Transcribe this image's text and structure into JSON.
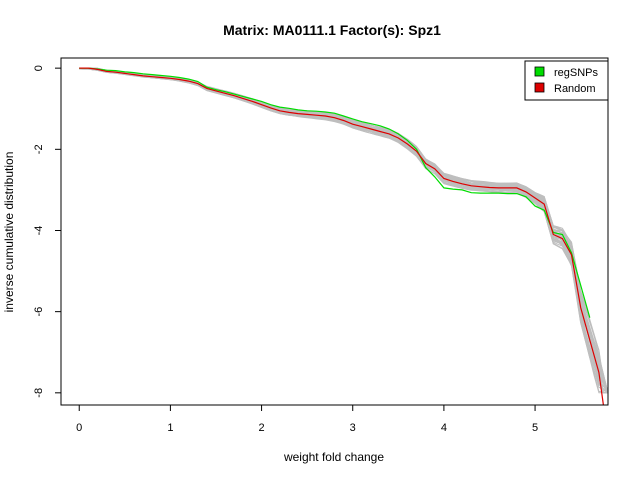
{
  "chart_data": {
    "type": "line",
    "title": "Matrix: MA0111.1 Factor(s): Spz1",
    "xlabel": "weight fold change",
    "ylabel": "inverse cumulative distribution",
    "xlim": [
      -0.2,
      5.8
    ],
    "ylim": [
      -8.3,
      0.25
    ],
    "x_ticks": [
      0,
      1,
      2,
      3,
      4,
      5
    ],
    "y_ticks": [
      0,
      -2,
      -4,
      -6,
      -8
    ],
    "legend": {
      "position": "top-right",
      "entries": [
        "regSNPs",
        "Random"
      ]
    },
    "colors": {
      "regSNPs": "#00dd00",
      "Random": "#dd0000",
      "background_runs": "#bebebe"
    },
    "series": [
      {
        "name": "regSNPs",
        "x": [
          0,
          0.1,
          0.2,
          0.3,
          0.4,
          0.5,
          0.6,
          0.7,
          0.8,
          0.9,
          1.0,
          1.1,
          1.2,
          1.3,
          1.4,
          1.5,
          1.6,
          1.7,
          1.8,
          1.9,
          2.0,
          2.1,
          2.2,
          2.3,
          2.4,
          2.5,
          2.6,
          2.7,
          2.8,
          2.9,
          3.0,
          3.1,
          3.2,
          3.3,
          3.4,
          3.5,
          3.6,
          3.7,
          3.8,
          3.9,
          4.0,
          4.1,
          4.2,
          4.3,
          4.4,
          4.5,
          4.6,
          4.7,
          4.8,
          4.9,
          5.0,
          5.1,
          5.2,
          5.3,
          5.4,
          5.5,
          5.6
        ],
        "y": [
          0,
          0,
          -0.02,
          -0.05,
          -0.06,
          -0.09,
          -0.11,
          -0.14,
          -0.16,
          -0.18,
          -0.2,
          -0.23,
          -0.27,
          -0.33,
          -0.47,
          -0.53,
          -0.58,
          -0.64,
          -0.7,
          -0.76,
          -0.82,
          -0.9,
          -0.96,
          -0.99,
          -1.03,
          -1.05,
          -1.06,
          -1.08,
          -1.11,
          -1.18,
          -1.25,
          -1.32,
          -1.37,
          -1.42,
          -1.5,
          -1.62,
          -1.78,
          -2.0,
          -2.45,
          -2.68,
          -2.95,
          -2.98,
          -3.0,
          -3.07,
          -3.08,
          -3.08,
          -3.08,
          -3.09,
          -3.09,
          -3.17,
          -3.4,
          -3.5,
          -4.05,
          -4.1,
          -4.55,
          -5.35,
          -6.15
        ]
      },
      {
        "name": "Random",
        "x": [
          0,
          0.1,
          0.2,
          0.3,
          0.4,
          0.5,
          0.6,
          0.7,
          0.8,
          0.9,
          1.0,
          1.1,
          1.2,
          1.3,
          1.4,
          1.5,
          1.6,
          1.7,
          1.8,
          1.9,
          2.0,
          2.1,
          2.2,
          2.3,
          2.4,
          2.5,
          2.6,
          2.7,
          2.8,
          2.9,
          3.0,
          3.1,
          3.2,
          3.3,
          3.4,
          3.5,
          3.6,
          3.7,
          3.8,
          3.9,
          4.0,
          4.1,
          4.2,
          4.3,
          4.4,
          4.5,
          4.6,
          4.7,
          4.8,
          4.9,
          5.0,
          5.1,
          5.2,
          5.3,
          5.4,
          5.5,
          5.6,
          5.7,
          5.75
        ],
        "y": [
          0,
          0,
          -0.03,
          -0.08,
          -0.1,
          -0.13,
          -0.16,
          -0.19,
          -0.21,
          -0.23,
          -0.25,
          -0.28,
          -0.32,
          -0.38,
          -0.5,
          -0.56,
          -0.62,
          -0.68,
          -0.75,
          -0.82,
          -0.9,
          -0.98,
          -1.05,
          -1.09,
          -1.12,
          -1.14,
          -1.16,
          -1.18,
          -1.22,
          -1.29,
          -1.38,
          -1.44,
          -1.5,
          -1.56,
          -1.62,
          -1.72,
          -1.87,
          -2.05,
          -2.35,
          -2.48,
          -2.72,
          -2.79,
          -2.85,
          -2.9,
          -2.92,
          -2.94,
          -2.95,
          -2.95,
          -2.95,
          -3.05,
          -3.2,
          -3.35,
          -4.1,
          -4.2,
          -4.6,
          -5.9,
          -6.7,
          -7.5,
          -8.3
        ]
      }
    ]
  }
}
